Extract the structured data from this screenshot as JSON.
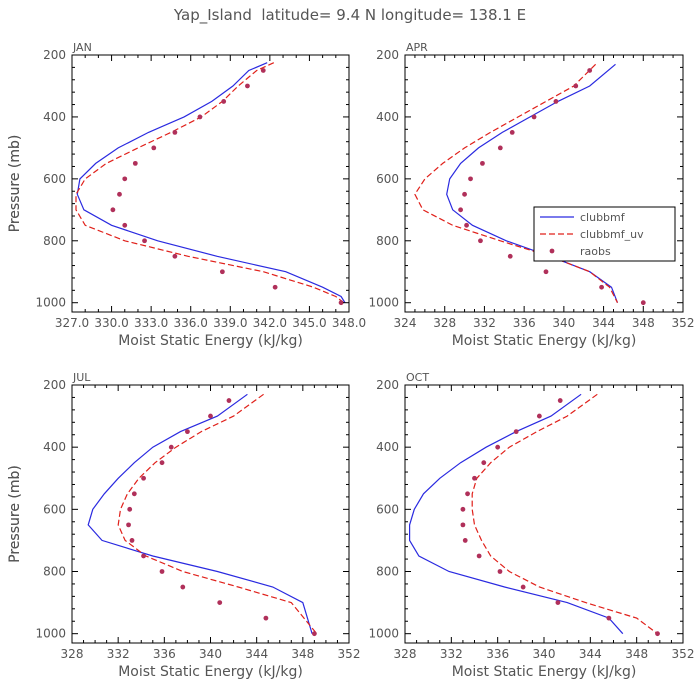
{
  "figure_title": "Yap_Island  latitude= 9.4 N longitude= 138.1 E",
  "colors": {
    "clubbmf": "#2a2ae0",
    "clubbmf_uv": "#e0201a",
    "raobs": "#b0305a",
    "text": "#555555"
  },
  "legend": {
    "panel": 1,
    "placement": "right",
    "entries": [
      {
        "name": "clubbmf",
        "style": "solid-line"
      },
      {
        "name": "clubbmf_uv",
        "style": "dashed-line"
      },
      {
        "name": "raobs",
        "style": "dot"
      }
    ]
  },
  "chart_data": [
    {
      "type": "line",
      "title": "JAN",
      "xlabel": "Moist Static Energy (kJ/kg)",
      "ylabel": "Pressure (mb)",
      "xlim": [
        327,
        348
      ],
      "ylim": [
        1030,
        200
      ],
      "xticks": [
        327,
        330,
        333,
        336,
        339,
        342,
        345,
        348
      ],
      "xtick_labels": [
        "327.0",
        "330.0",
        "333.0",
        "336.0",
        "339.0",
        "342.0",
        "345.0",
        "348.0"
      ],
      "yticks": [
        200,
        400,
        600,
        800,
        1000
      ],
      "series": [
        {
          "name": "clubbmf",
          "style": "solid",
          "x": [
            341.8,
            340.4,
            339.2,
            337.6,
            335.5,
            332.8,
            330.5,
            328.8,
            327.6,
            327.4,
            327.9,
            330.0,
            333.5,
            338.0,
            343.2,
            346.0,
            347.4,
            347.7
          ],
          "y": [
            225,
            250,
            300,
            350,
            400,
            450,
            500,
            550,
            600,
            650,
            700,
            750,
            800,
            850,
            900,
            950,
            980,
            1000
          ]
        },
        {
          "name": "clubbmf_uv",
          "style": "dashed",
          "x": [
            342.3,
            341.0,
            339.6,
            338.4,
            336.8,
            334.5,
            332.0,
            329.6,
            328.0,
            327.3,
            327.3,
            328.0,
            331.0,
            335.8,
            341.5,
            345.3,
            347.0,
            347.6
          ],
          "y": [
            225,
            250,
            300,
            350,
            400,
            450,
            500,
            550,
            600,
            650,
            700,
            750,
            800,
            850,
            900,
            950,
            980,
            1000
          ]
        },
        {
          "name": "raobs",
          "style": "dots",
          "x": [
            341.5,
            340.3,
            338.5,
            336.7,
            334.8,
            333.2,
            331.8,
            331.0,
            330.6,
            330.1,
            331.0,
            332.5,
            334.8,
            338.4,
            342.4,
            347.4
          ],
          "y": [
            250,
            300,
            350,
            400,
            450,
            500,
            550,
            600,
            650,
            700,
            750,
            800,
            850,
            900,
            950,
            1000
          ]
        }
      ]
    },
    {
      "type": "line",
      "title": "APR",
      "xlabel": "Moist Static Energy (kJ/kg)",
      "ylabel": "Pressure (mb)",
      "xlim": [
        324,
        352
      ],
      "ylim": [
        1030,
        200
      ],
      "xticks": [
        324,
        328,
        332,
        336,
        340,
        344,
        348,
        352
      ],
      "xtick_labels": [
        "324",
        "328",
        "332",
        "336",
        "340",
        "344",
        "348",
        "352"
      ],
      "yticks": [
        200,
        400,
        600,
        800,
        1000
      ],
      "series": [
        {
          "name": "clubbmf",
          "style": "solid",
          "x": [
            345.2,
            342.6,
            339.4,
            336.6,
            333.8,
            331.4,
            329.6,
            328.5,
            328.2,
            328.8,
            330.8,
            334.2,
            338.6,
            342.6,
            344.8,
            345.4
          ],
          "y": [
            230,
            300,
            350,
            400,
            450,
            500,
            550,
            600,
            650,
            700,
            750,
            800,
            850,
            900,
            950,
            1000
          ]
        },
        {
          "name": "clubbmf_uv",
          "style": "dashed",
          "x": [
            343.2,
            341.0,
            338.2,
            335.4,
            332.6,
            330.0,
            327.8,
            326.0,
            325.0,
            325.8,
            328.8,
            333.6,
            338.6,
            342.6,
            344.6,
            345.4
          ],
          "y": [
            230,
            300,
            350,
            400,
            450,
            500,
            550,
            600,
            650,
            700,
            750,
            800,
            850,
            900,
            950,
            1000
          ]
        },
        {
          "name": "raobs",
          "style": "dots",
          "x": [
            342.6,
            341.2,
            339.2,
            337.0,
            334.8,
            333.6,
            331.8,
            330.6,
            330.0,
            329.6,
            330.2,
            331.6,
            334.6,
            338.2,
            343.8,
            348.0
          ],
          "y": [
            250,
            300,
            350,
            400,
            450,
            500,
            550,
            600,
            650,
            700,
            750,
            800,
            850,
            900,
            950,
            1000
          ]
        }
      ]
    },
    {
      "type": "line",
      "title": "JUL",
      "xlabel": "Moist Static Energy (kJ/kg)",
      "ylabel": "Pressure (mb)",
      "xlim": [
        328,
        352
      ],
      "ylim": [
        1030,
        200
      ],
      "xticks": [
        328,
        332,
        336,
        340,
        344,
        348,
        352
      ],
      "xtick_labels": [
        "328",
        "332",
        "336",
        "340",
        "344",
        "348",
        "352"
      ],
      "yticks": [
        200,
        400,
        600,
        800,
        1000
      ],
      "series": [
        {
          "name": "clubbmf",
          "style": "solid",
          "x": [
            343.2,
            340.6,
            337.4,
            335.0,
            333.4,
            332.0,
            330.8,
            329.8,
            329.4,
            330.6,
            335.0,
            340.6,
            345.4,
            348.0,
            348.8
          ],
          "y": [
            230,
            300,
            350,
            400,
            450,
            500,
            550,
            600,
            650,
            700,
            750,
            800,
            850,
            900,
            1000
          ]
        },
        {
          "name": "clubbmf_uv",
          "style": "dashed",
          "x": [
            344.6,
            342.0,
            339.2,
            337.0,
            335.2,
            333.8,
            332.8,
            332.2,
            332.0,
            332.6,
            334.4,
            337.6,
            342.4,
            347.0,
            349.2
          ],
          "y": [
            230,
            300,
            350,
            400,
            450,
            500,
            550,
            600,
            650,
            700,
            750,
            800,
            850,
            900,
            1000
          ]
        },
        {
          "name": "raobs",
          "style": "dots",
          "x": [
            341.6,
            340.0,
            338.0,
            336.6,
            335.8,
            334.2,
            333.4,
            333.0,
            332.9,
            333.2,
            334.2,
            335.8,
            337.6,
            340.8,
            344.8,
            349.0
          ],
          "y": [
            250,
            300,
            350,
            400,
            450,
            500,
            550,
            600,
            650,
            700,
            750,
            800,
            850,
            900,
            950,
            1000
          ]
        }
      ]
    },
    {
      "type": "line",
      "title": "OCT",
      "xlabel": "Moist Static Energy (kJ/kg)",
      "ylabel": "Pressure (mb)",
      "xlim": [
        328,
        352
      ],
      "ylim": [
        1030,
        200
      ],
      "xticks": [
        328,
        332,
        336,
        340,
        344,
        348,
        352
      ],
      "xtick_labels": [
        "328",
        "332",
        "336",
        "340",
        "344",
        "348",
        "352"
      ],
      "yticks": [
        200,
        400,
        600,
        800,
        1000
      ],
      "series": [
        {
          "name": "clubbmf",
          "style": "solid",
          "x": [
            343.2,
            340.6,
            337.6,
            335.0,
            332.8,
            331.0,
            329.6,
            328.8,
            328.4,
            328.4,
            329.2,
            331.8,
            336.6,
            342.0,
            345.6,
            346.8
          ],
          "y": [
            230,
            300,
            350,
            400,
            450,
            500,
            550,
            600,
            650,
            700,
            750,
            800,
            850,
            900,
            950,
            1000
          ]
        },
        {
          "name": "clubbmf_uv",
          "style": "dashed",
          "x": [
            344.6,
            342.0,
            339.4,
            337.0,
            335.4,
            334.2,
            333.8,
            333.8,
            334.0,
            334.6,
            335.4,
            337.0,
            339.6,
            343.6,
            348.0,
            349.8
          ],
          "y": [
            230,
            300,
            350,
            400,
            450,
            500,
            550,
            600,
            650,
            700,
            750,
            800,
            850,
            900,
            950,
            1000
          ]
        },
        {
          "name": "raobs",
          "style": "dots",
          "x": [
            341.4,
            339.6,
            337.6,
            336.0,
            334.8,
            334.0,
            333.4,
            333.0,
            333.0,
            333.2,
            334.4,
            336.2,
            338.2,
            341.2,
            345.6,
            349.8
          ],
          "y": [
            250,
            300,
            350,
            400,
            450,
            500,
            550,
            600,
            650,
            700,
            750,
            800,
            850,
            900,
            950,
            1000
          ]
        }
      ]
    }
  ]
}
